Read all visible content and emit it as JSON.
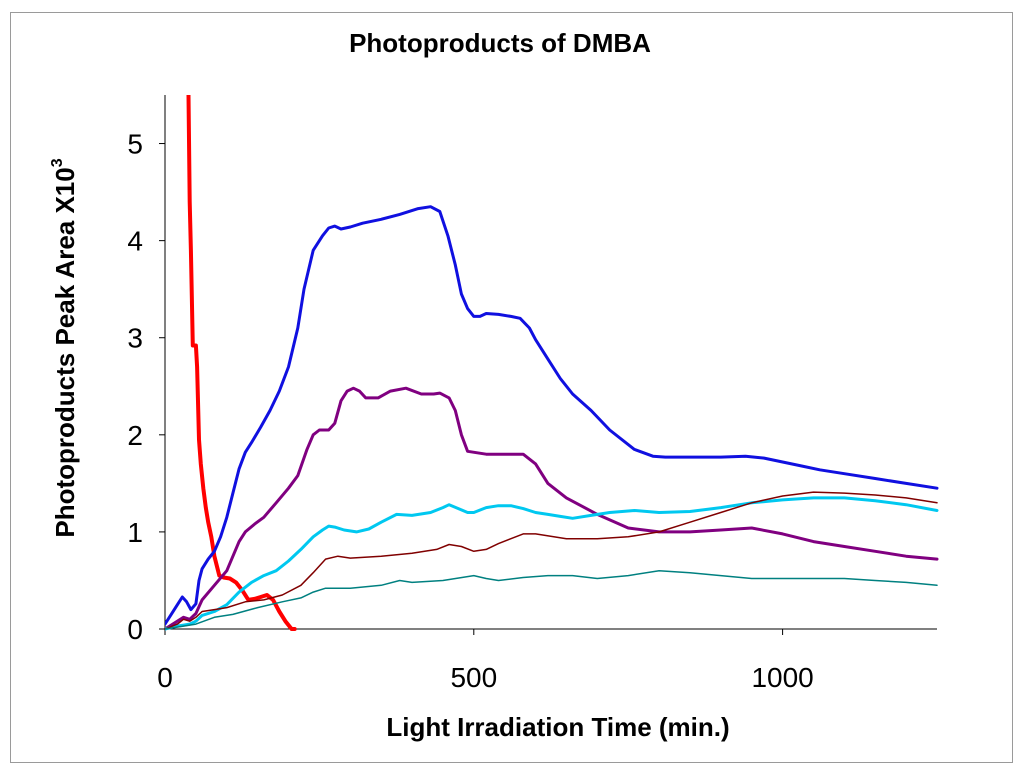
{
  "chart_data": {
    "type": "line",
    "title": "Photoproducts of DMBA",
    "xlabel": "Light Irradiation Time (min.)",
    "ylabel_main": "Photoproducts Peak Area X10",
    "ylabel_sup": "3",
    "xlim": [
      0,
      1250
    ],
    "ylim": [
      0,
      5.5
    ],
    "xticks": [
      0,
      500,
      1000
    ],
    "xtick_labels": [
      "0",
      "500",
      "1000"
    ],
    "yticks": [
      0,
      1,
      2,
      3,
      4,
      5
    ],
    "ytick_labels": [
      "0",
      "1",
      "2",
      "3",
      "4",
      "5"
    ],
    "legend": "none",
    "grid": false,
    "series": [
      {
        "name": "red",
        "color": "#ff0000",
        "width": 4,
        "x": [
          38,
          40,
          42,
          45,
          50,
          52,
          55,
          58,
          62,
          66,
          70,
          75,
          80,
          88,
          95,
          105,
          115,
          125,
          135,
          145,
          155,
          165,
          175,
          185,
          195,
          205,
          210
        ],
        "y": [
          5.5,
          4.4,
          3.9,
          2.92,
          2.92,
          2.7,
          1.95,
          1.7,
          1.45,
          1.25,
          1.1,
          0.95,
          0.75,
          0.55,
          0.53,
          0.52,
          0.48,
          0.4,
          0.3,
          0.31,
          0.33,
          0.35,
          0.3,
          0.18,
          0.08,
          0.0,
          0.0
        ]
      },
      {
        "name": "blue",
        "color": "#1010e0",
        "width": 3,
        "x": [
          0,
          10,
          20,
          28,
          35,
          42,
          50,
          55,
          60,
          70,
          80,
          90,
          100,
          110,
          120,
          130,
          140,
          155,
          170,
          185,
          200,
          215,
          225,
          240,
          255,
          265,
          275,
          285,
          300,
          320,
          350,
          380,
          410,
          430,
          445,
          458,
          470,
          480,
          490,
          500,
          510,
          520,
          540,
          560,
          575,
          590,
          600,
          620,
          640,
          660,
          690,
          720,
          760,
          790,
          810,
          850,
          900,
          940,
          970,
          1000,
          1030,
          1060,
          1100,
          1150,
          1200,
          1250
        ],
        "y": [
          0.05,
          0.15,
          0.25,
          0.33,
          0.28,
          0.2,
          0.26,
          0.5,
          0.62,
          0.72,
          0.8,
          0.95,
          1.15,
          1.4,
          1.65,
          1.82,
          1.92,
          2.08,
          2.25,
          2.45,
          2.7,
          3.1,
          3.5,
          3.9,
          4.05,
          4.13,
          4.15,
          4.12,
          4.14,
          4.18,
          4.22,
          4.27,
          4.33,
          4.35,
          4.3,
          4.05,
          3.75,
          3.45,
          3.3,
          3.22,
          3.22,
          3.25,
          3.24,
          3.22,
          3.2,
          3.1,
          2.98,
          2.78,
          2.58,
          2.42,
          2.25,
          2.05,
          1.85,
          1.78,
          1.77,
          1.77,
          1.77,
          1.78,
          1.76,
          1.72,
          1.68,
          1.64,
          1.6,
          1.55,
          1.5,
          1.45
        ]
      },
      {
        "name": "purple",
        "color": "#800080",
        "width": 3,
        "x": [
          0,
          20,
          30,
          40,
          50,
          60,
          80,
          100,
          120,
          130,
          145,
          160,
          180,
          200,
          215,
          230,
          240,
          250,
          265,
          275,
          285,
          295,
          305,
          315,
          325,
          345,
          365,
          390,
          415,
          435,
          445,
          460,
          470,
          480,
          490,
          520,
          560,
          580,
          600,
          620,
          650,
          700,
          750,
          800,
          850,
          900,
          950,
          1000,
          1050,
          1100,
          1150,
          1200,
          1250
        ],
        "y": [
          0.0,
          0.08,
          0.12,
          0.1,
          0.16,
          0.3,
          0.45,
          0.6,
          0.9,
          1.0,
          1.08,
          1.15,
          1.3,
          1.45,
          1.58,
          1.85,
          2.0,
          2.05,
          2.05,
          2.12,
          2.35,
          2.45,
          2.48,
          2.45,
          2.38,
          2.38,
          2.45,
          2.48,
          2.42,
          2.42,
          2.43,
          2.38,
          2.25,
          2.0,
          1.83,
          1.8,
          1.8,
          1.8,
          1.7,
          1.5,
          1.35,
          1.18,
          1.04,
          1.0,
          1.0,
          1.02,
          1.04,
          0.98,
          0.9,
          0.85,
          0.8,
          0.75,
          0.72
        ]
      },
      {
        "name": "cyan",
        "color": "#00c8f0",
        "width": 3,
        "x": [
          0,
          20,
          40,
          50,
          60,
          80,
          100,
          120,
          140,
          160,
          180,
          200,
          220,
          240,
          255,
          265,
          275,
          290,
          310,
          330,
          350,
          375,
          400,
          430,
          450,
          460,
          475,
          490,
          500,
          520,
          540,
          560,
          580,
          600,
          620,
          640,
          660,
          690,
          720,
          760,
          800,
          850,
          900,
          950,
          1000,
          1050,
          1100,
          1150,
          1200,
          1250
        ],
        "y": [
          0.0,
          0.03,
          0.05,
          0.08,
          0.14,
          0.18,
          0.25,
          0.38,
          0.48,
          0.55,
          0.6,
          0.7,
          0.82,
          0.95,
          1.02,
          1.06,
          1.05,
          1.02,
          1.0,
          1.03,
          1.1,
          1.18,
          1.17,
          1.2,
          1.25,
          1.28,
          1.24,
          1.2,
          1.2,
          1.25,
          1.27,
          1.27,
          1.24,
          1.2,
          1.18,
          1.16,
          1.14,
          1.17,
          1.2,
          1.22,
          1.2,
          1.21,
          1.25,
          1.3,
          1.33,
          1.35,
          1.35,
          1.32,
          1.28,
          1.22
        ]
      },
      {
        "name": "darkred",
        "color": "#800000",
        "width": 1.5,
        "x": [
          0,
          20,
          30,
          40,
          50,
          60,
          80,
          100,
          130,
          160,
          190,
          220,
          240,
          260,
          280,
          300,
          350,
          400,
          440,
          460,
          480,
          500,
          520,
          540,
          560,
          580,
          600,
          650,
          700,
          750,
          800,
          850,
          900,
          950,
          1000,
          1050,
          1100,
          1150,
          1200,
          1250
        ],
        "y": [
          0.0,
          0.05,
          0.1,
          0.08,
          0.12,
          0.18,
          0.2,
          0.22,
          0.28,
          0.3,
          0.35,
          0.45,
          0.58,
          0.72,
          0.75,
          0.73,
          0.75,
          0.78,
          0.82,
          0.87,
          0.85,
          0.8,
          0.82,
          0.88,
          0.93,
          0.98,
          0.98,
          0.93,
          0.93,
          0.95,
          1.0,
          1.1,
          1.2,
          1.3,
          1.37,
          1.41,
          1.4,
          1.38,
          1.35,
          1.3
        ]
      },
      {
        "name": "teal",
        "color": "#008080",
        "width": 1.5,
        "x": [
          0,
          30,
          50,
          80,
          110,
          150,
          190,
          220,
          240,
          260,
          280,
          300,
          350,
          380,
          400,
          450,
          500,
          520,
          540,
          580,
          620,
          660,
          700,
          750,
          800,
          850,
          900,
          950,
          1000,
          1050,
          1100,
          1150,
          1200,
          1250
        ],
        "y": [
          0.0,
          0.03,
          0.05,
          0.12,
          0.15,
          0.22,
          0.28,
          0.32,
          0.38,
          0.42,
          0.42,
          0.42,
          0.45,
          0.5,
          0.48,
          0.5,
          0.55,
          0.52,
          0.5,
          0.53,
          0.55,
          0.55,
          0.52,
          0.55,
          0.6,
          0.58,
          0.55,
          0.52,
          0.52,
          0.52,
          0.52,
          0.5,
          0.48,
          0.45
        ]
      }
    ]
  }
}
